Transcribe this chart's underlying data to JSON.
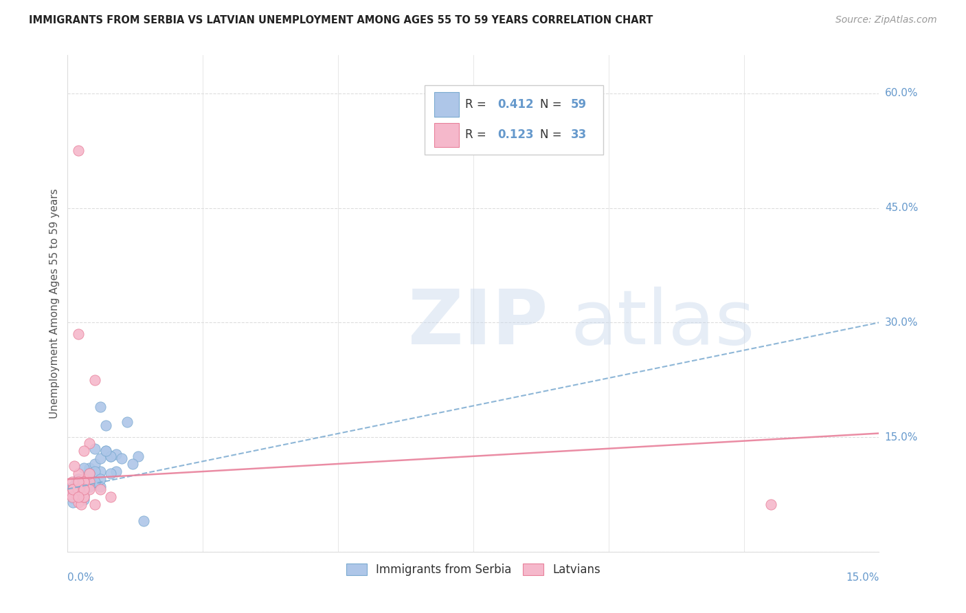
{
  "title": "IMMIGRANTS FROM SERBIA VS LATVIAN UNEMPLOYMENT AMONG AGES 55 TO 59 YEARS CORRELATION CHART",
  "source": "Source: ZipAtlas.com",
  "ylabel": "Unemployment Among Ages 55 to 59 years",
  "xmin": 0.0,
  "xmax": 0.15,
  "ymin": 0.0,
  "ymax": 0.65,
  "serbia_R": 0.412,
  "serbia_N": 59,
  "latvian_R": 0.123,
  "latvian_N": 33,
  "serbia_color": "#aec6e8",
  "latvian_color": "#f5b8cb",
  "serbia_edge_color": "#7aaad0",
  "latvian_edge_color": "#e8809a",
  "serbia_line_color": "#7aaad0",
  "latvian_line_color": "#e8809a",
  "grid_color": "#dddddd",
  "title_color": "#222222",
  "source_color": "#999999",
  "axis_label_color": "#6699cc",
  "ylabel_color": "#555555",
  "serbia_trend_y0": 0.082,
  "serbia_trend_y1": 0.3,
  "latvian_trend_y0": 0.095,
  "latvian_trend_y1": 0.155,
  "serbia_scatter_x": [
    0.0005,
    0.001,
    0.0015,
    0.002,
    0.0008,
    0.0012,
    0.003,
    0.0025,
    0.002,
    0.001,
    0.004,
    0.003,
    0.002,
    0.004,
    0.006,
    0.003,
    0.002,
    0.001,
    0.004,
    0.003,
    0.005,
    0.002,
    0.001,
    0.003,
    0.004,
    0.006,
    0.007,
    0.005,
    0.003,
    0.002,
    0.008,
    0.006,
    0.004,
    0.003,
    0.002,
    0.001,
    0.005,
    0.004,
    0.007,
    0.006,
    0.009,
    0.005,
    0.003,
    0.011,
    0.008,
    0.004,
    0.003,
    0.013,
    0.009,
    0.006,
    0.014,
    0.012,
    0.008,
    0.005,
    0.003,
    0.001,
    0.007,
    0.01,
    0.004
  ],
  "serbia_scatter_y": [
    0.082,
    0.085,
    0.09,
    0.088,
    0.075,
    0.078,
    0.08,
    0.076,
    0.095,
    0.07,
    0.088,
    0.092,
    0.075,
    0.11,
    0.085,
    0.068,
    0.095,
    0.082,
    0.1,
    0.074,
    0.092,
    0.068,
    0.072,
    0.11,
    0.085,
    0.19,
    0.165,
    0.135,
    0.095,
    0.082,
    0.125,
    0.105,
    0.088,
    0.078,
    0.092,
    0.065,
    0.115,
    0.102,
    0.132,
    0.122,
    0.128,
    0.105,
    0.082,
    0.17,
    0.125,
    0.102,
    0.085,
    0.125,
    0.105,
    0.095,
    0.04,
    0.115,
    0.102,
    0.092,
    0.082,
    0.075,
    0.132,
    0.122,
    0.085
  ],
  "latvian_scatter_x": [
    0.0005,
    0.001,
    0.0008,
    0.002,
    0.0015,
    0.001,
    0.003,
    0.0025,
    0.0018,
    0.0008,
    0.004,
    0.003,
    0.002,
    0.004,
    0.003,
    0.002,
    0.0012,
    0.004,
    0.003,
    0.005,
    0.002,
    0.001,
    0.003,
    0.004,
    0.006,
    0.003,
    0.002,
    0.008,
    0.005,
    0.003,
    0.002,
    0.13,
    0.002
  ],
  "latvian_scatter_y": [
    0.075,
    0.082,
    0.092,
    0.065,
    0.075,
    0.082,
    0.095,
    0.062,
    0.082,
    0.072,
    0.142,
    0.132,
    0.082,
    0.092,
    0.072,
    0.102,
    0.112,
    0.082,
    0.092,
    0.225,
    0.285,
    0.082,
    0.092,
    0.102,
    0.082,
    0.072,
    0.092,
    0.072,
    0.062,
    0.082,
    0.072,
    0.062,
    0.525
  ]
}
